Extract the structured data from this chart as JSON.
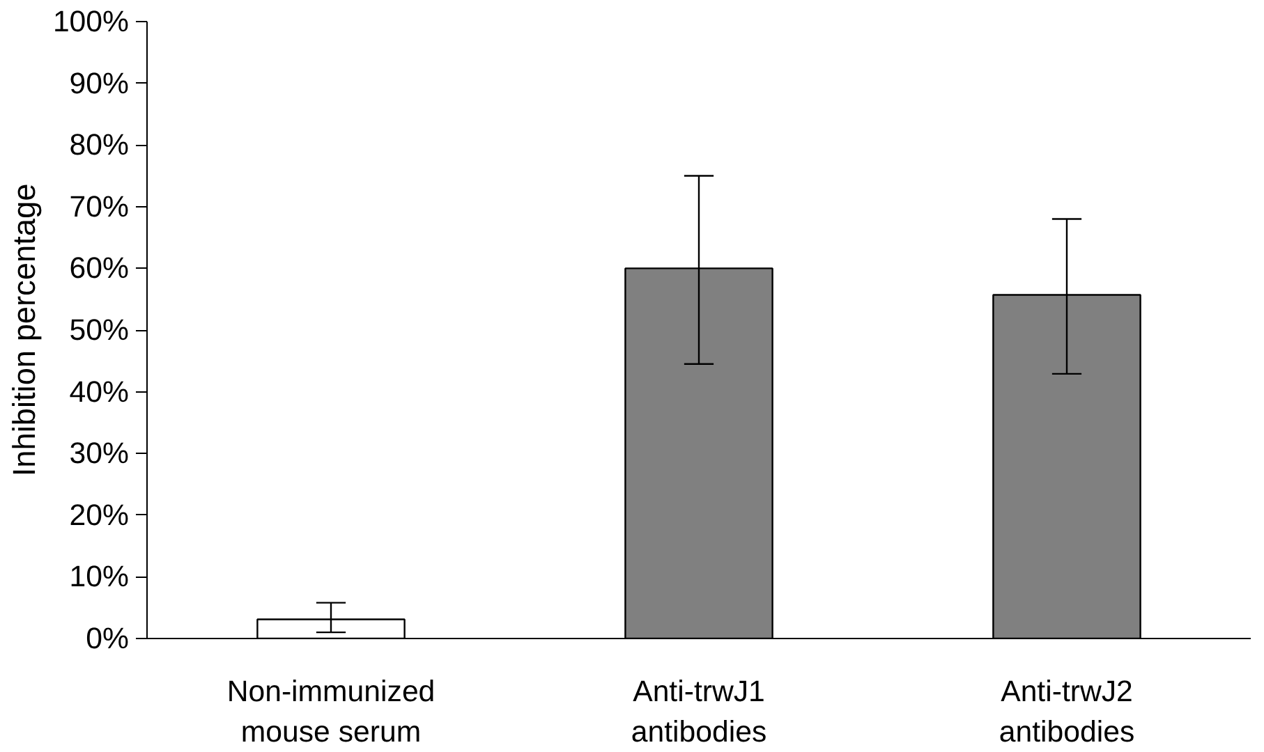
{
  "chart_data": {
    "type": "bar",
    "ylabel": "Inhibition percentage",
    "categories": [
      "Non-immunized mouse serum",
      "Anti-trwJ1 antibodies",
      "Anti-trwJ2 antibodies"
    ],
    "values": [
      3.1,
      60,
      55.7
    ],
    "colors": [
      "#ffffff",
      "#808080",
      "#808080"
    ],
    "errors": [
      [
        1,
        5.8
      ],
      [
        44.5,
        75
      ],
      [
        42.9,
        68
      ]
    ],
    "ylim": [
      0,
      100
    ],
    "yticks": [
      {
        "value": 0,
        "label": "0%"
      },
      {
        "value": 10,
        "label": "10%"
      },
      {
        "value": 20,
        "label": "20%"
      },
      {
        "value": 30,
        "label": "30%"
      },
      {
        "value": 40,
        "label": "40%"
      },
      {
        "value": 50,
        "label": "50%"
      },
      {
        "value": 60,
        "label": "60%"
      },
      {
        "value": 70,
        "label": "70%"
      },
      {
        "value": 80,
        "label": "80%"
      },
      {
        "value": 90,
        "label": "90%"
      },
      {
        "value": 100,
        "label": "100%"
      }
    ],
    "grid": false
  }
}
